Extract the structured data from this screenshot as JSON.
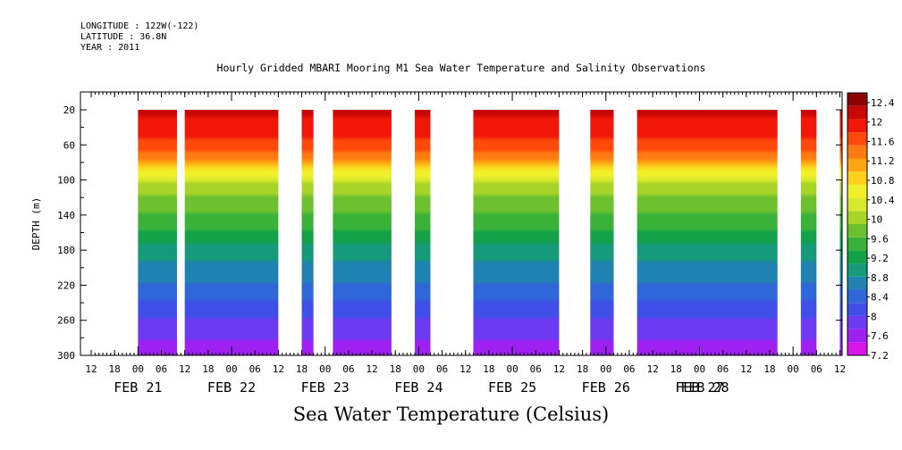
{
  "meta": {
    "longitude": "LONGITUDE : 122W(-122)",
    "latitude": "LATITUDE : 36.8N",
    "year": "YEAR : 2011"
  },
  "chart_data": {
    "type": "heatmap",
    "title": "Hourly Gridded MBARI Mooring M1 Sea Water Temperature and Salinity Observations",
    "ylabel": "DEPTH (m)",
    "ylim": [
      300,
      10
    ],
    "y_ticks": [
      20,
      60,
      100,
      140,
      180,
      220,
      260,
      300
    ],
    "x_range_hours": [
      0,
      210
    ],
    "x_hour_ticks": [
      "06",
      "12",
      "18",
      "00",
      "06",
      "12",
      "18",
      "00",
      "06",
      "12",
      "18",
      "00",
      "06",
      "12",
      "18",
      "00",
      "06",
      "12",
      "18",
      "00",
      "06",
      "12",
      "18",
      "00",
      "06",
      "12",
      "18",
      "00",
      "06",
      "12",
      "18",
      "00",
      "06",
      "12",
      "18",
      "00"
    ],
    "date_labels": [
      "FEB 21",
      "FEB 22",
      "FEB 23",
      "FEB 24",
      "FEB 25",
      "FEB 26",
      "FEB 27",
      "FEB 28"
    ],
    "colorbar": {
      "labels": [
        "12.4",
        "12",
        "11.6",
        "11.2",
        "10.8",
        "10.4",
        "10",
        "9.6",
        "9.2",
        "8.8",
        "8.4",
        "8",
        "7.6",
        "7.2"
      ],
      "range": [
        7.2,
        12.6
      ],
      "colors": [
        "#d814e8",
        "#9e21f2",
        "#6c3af0",
        "#3f4fe8",
        "#2f66d8",
        "#1f82b0",
        "#169a7a",
        "#13a14a",
        "#3ab23a",
        "#6ec12e",
        "#a8d429",
        "#d8e82a",
        "#f0f02a",
        "#ffd01c",
        "#ffa414",
        "#ff7a10",
        "#ff4a0c",
        "#f01608",
        "#c80806",
        "#8a0404"
      ]
    },
    "data_segments_hours": [
      [
        12,
        22
      ],
      [
        24,
        48
      ],
      [
        54,
        57
      ],
      [
        62,
        77
      ],
      [
        83,
        87
      ],
      [
        98,
        120
      ],
      [
        128,
        134
      ],
      [
        140,
        176
      ],
      [
        182,
        186
      ],
      [
        192,
        206
      ],
      [
        209,
        210
      ]
    ],
    "profile": [
      {
        "depth": 20,
        "temp": 12.1
      },
      {
        "depth": 50,
        "temp": 11.9
      },
      {
        "depth": 80,
        "temp": 11.2
      },
      {
        "depth": 100,
        "temp": 10.2
      },
      {
        "depth": 140,
        "temp": 9.6
      },
      {
        "depth": 180,
        "temp": 9.0
      },
      {
        "depth": 220,
        "temp": 8.5
      },
      {
        "depth": 260,
        "temp": 8.0
      },
      {
        "depth": 300,
        "temp": 7.5
      }
    ],
    "xtitle": "Sea Water Temperature (Celsius)"
  }
}
